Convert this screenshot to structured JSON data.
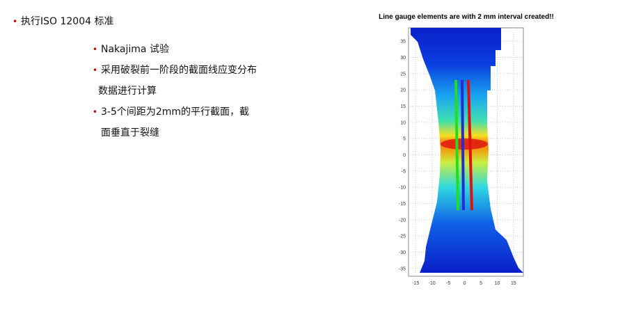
{
  "bullets": [
    {
      "lines": [
        "执行ISO 12004 标准"
      ]
    },
    {
      "lines": [
        "Nakajima  试验"
      ]
    },
    {
      "lines": [
        "采用破裂前一阶段的截面线应变分布",
        "数据进行计算"
      ]
    },
    {
      "lines": [
        "3-5个间距为2mm的平行截面，截",
        "面垂直于裂缝"
      ]
    }
  ],
  "figure": {
    "title": "Line gauge elements are with 2 mm interval created!!",
    "xlim": [
      -17.2,
      18
    ],
    "ylim": [
      -37.4,
      39.1
    ],
    "xticks": [
      -15,
      -10,
      -5,
      0,
      5,
      10,
      15
    ],
    "yticks": [
      35,
      30,
      25,
      20,
      15,
      10,
      5,
      0,
      -5,
      -10,
      -15,
      -20,
      -25,
      -30,
      -35
    ]
  }
}
